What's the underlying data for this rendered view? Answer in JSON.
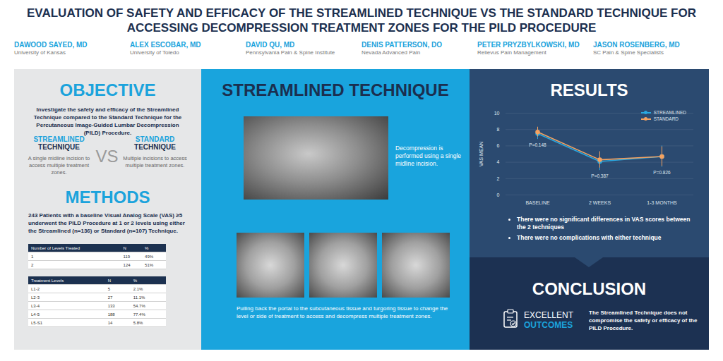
{
  "header": {
    "title": "EVALUATION OF SAFETY AND EFFICACY OF THE STREAMLINED TECHNIQUE VS THE STANDARD TECHNIQUE FOR ACCESSING DECOMPRESSION TREATMENT ZONES FOR THE PILD PROCEDURE",
    "authors": [
      {
        "name": "DAWOOD SAYED, MD",
        "affiliation": "University of Kansas"
      },
      {
        "name": "ALEX ESCOBAR, MD",
        "affiliation": "University of Toledo"
      },
      {
        "name": "DAVID QU, MD",
        "affiliation": "Pennsylvania Pain & Spine Institute"
      },
      {
        "name": "DENIS PATTERSON, DO",
        "affiliation": "Nevada Advanced Pain"
      },
      {
        "name": "PETER PRYZBYLKOWSKI, MD",
        "affiliation": "Relievus Pain Management"
      },
      {
        "name": "JASON ROSENBERG, MD",
        "affiliation": "SC Pain & Spine Specialists"
      }
    ]
  },
  "objective": {
    "heading": "OBJECTIVE",
    "text": "Investigate the safety and efficacy of the Streamlined Technique compared to the Standard Technique for the Percutaneous Image-Guided Lumbar Decompression (PILD) Procedure.",
    "left": {
      "title": "STREAMLINED",
      "subtitle": "TECHNIQUE",
      "text": "A single midline incision to access multiple treatment zones."
    },
    "vs": "VS",
    "right": {
      "title": "STANDARD",
      "subtitle": "TECHNIQUE",
      "text": "Multiple incisions to access multiple treatment zones."
    }
  },
  "methods": {
    "heading": "METHODS",
    "text": "243 Patients with a baseline Visual Analog Scale (VAS) ≥5 underwent the PILD Procedure at 1 or 2 levels using either the Streamlined (n=136) or Standard (n=107) Technique.",
    "tables": [
      {
        "header": [
          "Number of Levels Treated",
          "N",
          "%"
        ],
        "rows": [
          [
            "1",
            "119",
            "49%"
          ],
          [
            "2",
            "124",
            "51%"
          ]
        ]
      },
      {
        "header": [
          "Treatment Levels",
          "N",
          "%"
        ],
        "rows": [
          [
            "L1-2",
            "5",
            "2.1%"
          ],
          [
            "L2-3",
            "27",
            "11.1%"
          ],
          [
            "L3-4",
            "133",
            "54.7%"
          ],
          [
            "L4-5",
            "188",
            "77.4%"
          ],
          [
            "L5-S1",
            "14",
            "5.8%"
          ]
        ]
      }
    ]
  },
  "technique": {
    "heading": "STREAMLINED TECHNIQUE",
    "image_caption": "Decompression is performed using a single midline incision.",
    "caption": "Pulling back the portal to the subcutaneous tissue and turgoring tissue to change the level or side of treatment to access and decompress multiple treatment zones."
  },
  "results": {
    "heading": "RESULTS",
    "bullets": [
      "There were no significant differences in VAS scores between the 2 techniques",
      "There were no complications with either technique"
    ]
  },
  "conclusion": {
    "heading": "CONCLUSION",
    "label": [
      "EXCELLENT",
      "OUTCOMES"
    ],
    "text": "The Streamlined Technique does not compromise the safety or efficacy of the PILD Procedure."
  },
  "chart_data": {
    "type": "line",
    "categories": [
      "BASELINE",
      "2 WEEKS",
      "1-3 MONTHS"
    ],
    "series": [
      {
        "name": "STREAMLINED",
        "color": "#2aa8e0",
        "marker": "circle",
        "values": [
          7.5,
          4.1,
          4.7
        ],
        "error": [
          0.7,
          1.1,
          1.3
        ]
      },
      {
        "name": "STANDARD",
        "color": "#f4a261",
        "marker": "circle",
        "values": [
          7.7,
          4.3,
          4.7
        ],
        "error": [
          0.6,
          1.0,
          1.2
        ]
      }
    ],
    "ylabel": "VAS MEAN",
    "ylim": [
      0,
      10
    ],
    "yticks": [
      0,
      2,
      4,
      6,
      8,
      10
    ],
    "grid": true,
    "legend": "top-right",
    "annotations": [
      {
        "x": "BASELINE",
        "text": "P=0.148"
      },
      {
        "x": "2 WEEKS",
        "text": "P=0.387"
      },
      {
        "x": "1-3 MONTHS",
        "text": "P=0.826"
      }
    ]
  }
}
